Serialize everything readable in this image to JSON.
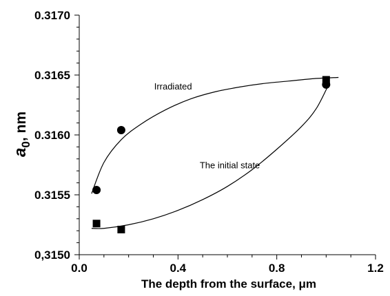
{
  "chart_data": {
    "type": "scatter",
    "xlabel": "The depth from the surface, μm",
    "ylabel_main": "a",
    "ylabel_sub": "0",
    "ylabel_rest": ", nm",
    "xlim": [
      0.0,
      1.2
    ],
    "ylim": [
      0.315,
      0.317
    ],
    "x_ticks": [
      {
        "value": 0.0,
        "label": "0.0"
      },
      {
        "value": 0.4,
        "label": "0.4"
      },
      {
        "value": 0.8,
        "label": "0.8"
      },
      {
        "value": 1.2,
        "label": "1.2"
      }
    ],
    "y_ticks": [
      {
        "value": 0.315,
        "label": "0,3150"
      },
      {
        "value": 0.3155,
        "label": "0.3155"
      },
      {
        "value": 0.316,
        "label": "0.3160"
      },
      {
        "value": 0.3165,
        "label": "0.3165"
      },
      {
        "value": 0.317,
        "label": "0.3170"
      }
    ],
    "grid": false,
    "series": [
      {
        "name": "Irradiated",
        "marker": "circle",
        "points": [
          [
            0.07,
            0.31554
          ],
          [
            0.17,
            0.31604
          ],
          [
            1.0,
            0.31642
          ]
        ],
        "curve": [
          [
            0.05,
            0.31551
          ],
          [
            0.1,
            0.31577
          ],
          [
            0.17,
            0.31596
          ],
          [
            0.25,
            0.31609
          ],
          [
            0.35,
            0.31621
          ],
          [
            0.45,
            0.3163
          ],
          [
            0.55,
            0.31636
          ],
          [
            0.65,
            0.3164
          ],
          [
            0.75,
            0.31643
          ],
          [
            0.85,
            0.31645
          ],
          [
            0.95,
            0.31647
          ],
          [
            1.05,
            0.31648
          ]
        ],
        "label_at": [
          0.38,
          0.31638
        ]
      },
      {
        "name": "The initial state",
        "marker": "square",
        "points": [
          [
            0.07,
            0.31526
          ],
          [
            0.17,
            0.31521
          ],
          [
            1.0,
            0.31646
          ]
        ],
        "curve": [
          [
            0.05,
            0.31522
          ],
          [
            0.1,
            0.31522
          ],
          [
            0.2,
            0.31525
          ],
          [
            0.3,
            0.3153
          ],
          [
            0.4,
            0.31537
          ],
          [
            0.5,
            0.31546
          ],
          [
            0.6,
            0.31557
          ],
          [
            0.7,
            0.31571
          ],
          [
            0.8,
            0.31588
          ],
          [
            0.9,
            0.31607
          ],
          [
            0.96,
            0.31622
          ],
          [
            1.01,
            0.31642
          ]
        ],
        "label_at": [
          0.61,
          0.31572
        ]
      }
    ]
  }
}
